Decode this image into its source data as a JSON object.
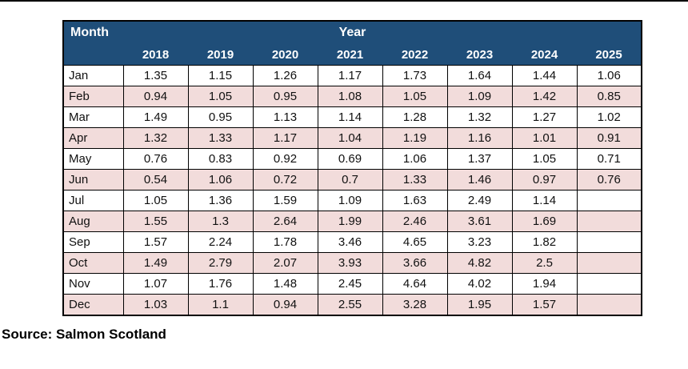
{
  "page": {
    "source_note": "Source: Salmon Scotland"
  },
  "colors": {
    "header_bg": "#1F4E79",
    "header_text": "#FFFFFF",
    "row_bg": "#FFFFFF",
    "row_alt_bg": "#F2DCDB",
    "border": "#000000"
  },
  "chart_data": {
    "type": "table",
    "corner_label": "Month",
    "group_label": "Year",
    "column_headers": [
      "2018",
      "2019",
      "2020",
      "2021",
      "2022",
      "2023",
      "2024",
      "2025"
    ],
    "rows": [
      {
        "month": "Jan",
        "values": [
          "1.35",
          "1.15",
          "1.26",
          "1.17",
          "1.73",
          "1.64",
          "1.44",
          "1.06"
        ]
      },
      {
        "month": "Feb",
        "values": [
          "0.94",
          "1.05",
          "0.95",
          "1.08",
          "1.05",
          "1.09",
          "1.42",
          "0.85"
        ]
      },
      {
        "month": "Mar",
        "values": [
          "1.49",
          "0.95",
          "1.13",
          "1.14",
          "1.28",
          "1.32",
          "1.27",
          "1.02"
        ]
      },
      {
        "month": "Apr",
        "values": [
          "1.32",
          "1.33",
          "1.17",
          "1.04",
          "1.19",
          "1.16",
          "1.01",
          "0.91"
        ]
      },
      {
        "month": "May",
        "values": [
          "0.76",
          "0.83",
          "0.92",
          "0.69",
          "1.06",
          "1.37",
          "1.05",
          "0.71"
        ]
      },
      {
        "month": "Jun",
        "values": [
          "0.54",
          "1.06",
          "0.72",
          "0.7",
          "1.33",
          "1.46",
          "0.97",
          "0.76"
        ]
      },
      {
        "month": "Jul",
        "values": [
          "1.05",
          "1.36",
          "1.59",
          "1.09",
          "1.63",
          "2.49",
          "1.14",
          ""
        ]
      },
      {
        "month": "Aug",
        "values": [
          "1.55",
          "1.3",
          "2.64",
          "1.99",
          "2.46",
          "3.61",
          "1.69",
          ""
        ]
      },
      {
        "month": "Sep",
        "values": [
          "1.57",
          "2.24",
          "1.78",
          "3.46",
          "4.65",
          "3.23",
          "1.82",
          ""
        ]
      },
      {
        "month": "Oct",
        "values": [
          "1.49",
          "2.79",
          "2.07",
          "3.93",
          "3.66",
          "4.82",
          "2.5",
          ""
        ]
      },
      {
        "month": "Nov",
        "values": [
          "1.07",
          "1.76",
          "1.48",
          "2.45",
          "4.64",
          "4.02",
          "1.94",
          ""
        ]
      },
      {
        "month": "Dec",
        "values": [
          "1.03",
          "1.1",
          "0.94",
          "2.55",
          "3.28",
          "1.95",
          "1.57",
          ""
        ]
      }
    ]
  }
}
